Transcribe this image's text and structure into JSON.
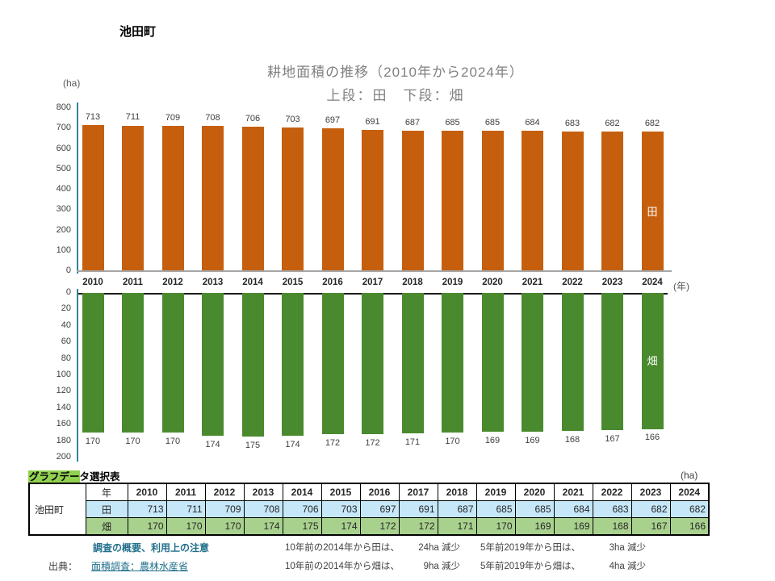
{
  "page_title": "池田町",
  "chart_data": {
    "type": "bar",
    "title": "耕地面積の推移（2010年から2024年）",
    "subtitle": "上段：田　下段：畑",
    "unit": "(ha)",
    "x_unit": "(年)",
    "grid": false,
    "categories": [
      "2010",
      "2011",
      "2012",
      "2013",
      "2014",
      "2015",
      "2016",
      "2017",
      "2018",
      "2019",
      "2020",
      "2021",
      "2022",
      "2023",
      "2024"
    ],
    "panels": [
      {
        "name": "田",
        "values": [
          713,
          711,
          709,
          708,
          706,
          703,
          697,
          691,
          687,
          685,
          685,
          684,
          683,
          682,
          682
        ],
        "ylim": [
          0,
          800
        ],
        "tick_step": 100,
        "inverted": false
      },
      {
        "name": "畑",
        "values": [
          170,
          170,
          170,
          174,
          175,
          174,
          172,
          172,
          171,
          170,
          169,
          169,
          168,
          167,
          166
        ],
        "ylim": [
          0,
          200
        ],
        "tick_step": 20,
        "inverted": true
      }
    ]
  },
  "table": {
    "caption_highlight": "グラフデー",
    "caption_rest": "タ選択表",
    "unit": "(ha)",
    "region": "池田町",
    "year_header": "年",
    "years": [
      "2010",
      "2011",
      "2012",
      "2013",
      "2014",
      "2015",
      "2016",
      "2017",
      "2018",
      "2019",
      "2020",
      "2021",
      "2022",
      "2023",
      "2024"
    ],
    "rows": [
      {
        "label": "田",
        "values": [
          713,
          711,
          709,
          708,
          706,
          703,
          697,
          691,
          687,
          685,
          685,
          684,
          683,
          682,
          682
        ]
      },
      {
        "label": "畑",
        "values": [
          170,
          170,
          170,
          174,
          175,
          174,
          172,
          172,
          171,
          170,
          169,
          169,
          168,
          167,
          166
        ]
      }
    ]
  },
  "notes": {
    "survey_link": "調査の概要、利用上の注意",
    "source_prefix": "出典：",
    "source_link": "面積調査：農林水産省",
    "comparisons": [
      {
        "label": "10年前の2014年から田は、",
        "value": "24ha 減少"
      },
      {
        "label": "5年前2019年から田は、",
        "value": "3ha 減少"
      },
      {
        "label": "10年前の2014年から畑は、",
        "value": "9ha 減少"
      },
      {
        "label": "5年前2019年から畑は、",
        "value": "4ha 減少"
      }
    ]
  },
  "colors": {
    "paddy_bar": "#C55F0E",
    "field_bar": "#4A8A2E",
    "axis_line": "#31849B",
    "link_teal": "#21708C",
    "table_row_paddy": "#C6E7F8",
    "table_row_field": "#A9D18E",
    "caption_highlight": "#92D050"
  }
}
